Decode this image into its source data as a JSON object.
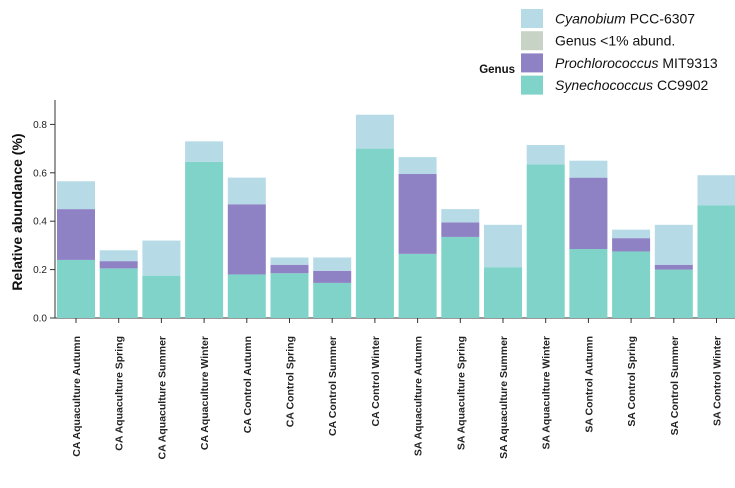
{
  "chart_data": {
    "type": "bar",
    "stacked": true,
    "ylabel": "Relative abundance (%)",
    "ylim": [
      0,
      0.9
    ],
    "yticks": [
      "0.0",
      "0.2",
      "0.4",
      "0.6",
      "0.8"
    ],
    "yticks_values": [
      0,
      0.2,
      0.4,
      0.6,
      0.8
    ],
    "categories": [
      "CA Aquaculture Autumn",
      "CA Aquaculture Spring",
      "CA Aquaculture Summer",
      "CA Aquaculture Winter",
      "CA Control Autumn",
      "CA Control Spring",
      "CA Control Summer",
      "CA Control Winter",
      "SA Aquaculture Autumn",
      "SA Aquaculture Spring",
      "SA Aquaculture Summer",
      "SA Aquaculture Winter",
      "SA Control Autumn",
      "SA Control Spring",
      "SA Control Summer",
      "SA Control Winter"
    ],
    "legend_title": "Genus",
    "legend_position": "top-right",
    "series": [
      {
        "name": "Synechococcus CC9902",
        "name_genus": "Synechococcus",
        "name_strain": "CC9902",
        "color": "#7fd3c8",
        "values": [
          0.24,
          0.205,
          0.175,
          0.645,
          0.18,
          0.185,
          0.145,
          0.7,
          0.265,
          0.335,
          0.21,
          0.635,
          0.285,
          0.275,
          0.2,
          0.465
        ]
      },
      {
        "name": "Prochlorococcus MIT9313",
        "name_genus": "Prochlorococcus",
        "name_strain": "MIT9313",
        "color": "#8f82c4",
        "values": [
          0.21,
          0.03,
          0.0,
          0.0,
          0.29,
          0.035,
          0.05,
          0.0,
          0.33,
          0.06,
          0.0,
          0.0,
          0.295,
          0.055,
          0.02,
          0.0
        ]
      },
      {
        "name": "Genus <1% abund.",
        "color": "#c7d3c4",
        "values": [
          0,
          0,
          0,
          0,
          0,
          0,
          0,
          0,
          0,
          0,
          0,
          0,
          0,
          0,
          0,
          0
        ]
      },
      {
        "name": "Cyanobium PCC-6307",
        "name_genus": "Cyanobium",
        "name_strain": "PCC-6307",
        "color": "#b6dbe6",
        "values": [
          0.115,
          0.045,
          0.145,
          0.085,
          0.11,
          0.03,
          0.055,
          0.14,
          0.07,
          0.055,
          0.175,
          0.08,
          0.07,
          0.035,
          0.165,
          0.125
        ]
      }
    ]
  }
}
